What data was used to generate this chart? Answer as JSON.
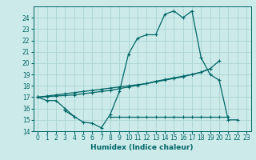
{
  "xlabel": "Humidex (Indice chaleur)",
  "background_color": "#cceaea",
  "grid_color": "#aad4d4",
  "line_color": "#006666",
  "x_values": [
    0,
    1,
    2,
    3,
    4,
    5,
    6,
    7,
    8,
    9,
    10,
    11,
    12,
    13,
    14,
    15,
    16,
    17,
    18,
    19,
    20,
    21,
    22,
    23
  ],
  "line1_y": [
    17.0,
    16.7,
    16.7,
    16.0,
    15.3,
    14.8,
    14.7,
    14.3,
    15.5,
    17.5,
    20.8,
    22.2,
    22.5,
    22.5,
    24.3,
    24.6,
    24.0,
    24.6,
    20.5,
    19.0,
    18.5,
    15.0,
    15.0,
    null
  ],
  "line2_y": [
    17.0,
    17.05,
    17.1,
    17.15,
    17.2,
    17.3,
    17.4,
    17.5,
    17.6,
    17.75,
    17.9,
    18.05,
    18.2,
    18.4,
    18.55,
    18.7,
    18.85,
    19.0,
    19.2,
    19.5,
    20.2,
    null,
    null,
    null
  ],
  "line3_y": [
    17.0,
    17.1,
    17.2,
    17.3,
    17.4,
    17.5,
    17.6,
    17.7,
    17.8,
    17.9,
    18.0,
    18.1,
    18.2,
    18.35,
    18.5,
    18.65,
    18.8,
    19.0,
    19.2,
    19.5,
    null,
    null,
    null,
    null
  ],
  "line4_y": [
    null,
    null,
    null,
    15.8,
    15.3,
    null,
    null,
    null,
    15.3,
    15.3,
    15.3,
    15.3,
    15.3,
    15.3,
    15.3,
    15.3,
    15.3,
    15.3,
    15.3,
    15.3,
    15.3,
    15.3,
    null,
    null
  ],
  "ylim": [
    14,
    25
  ],
  "xlim": [
    -0.5,
    23.5
  ],
  "yticks": [
    14,
    15,
    16,
    17,
    18,
    19,
    20,
    21,
    22,
    23,
    24
  ],
  "xticks": [
    0,
    1,
    2,
    3,
    4,
    5,
    6,
    7,
    8,
    9,
    10,
    11,
    12,
    13,
    14,
    15,
    16,
    17,
    18,
    19,
    20,
    21,
    22,
    23
  ]
}
